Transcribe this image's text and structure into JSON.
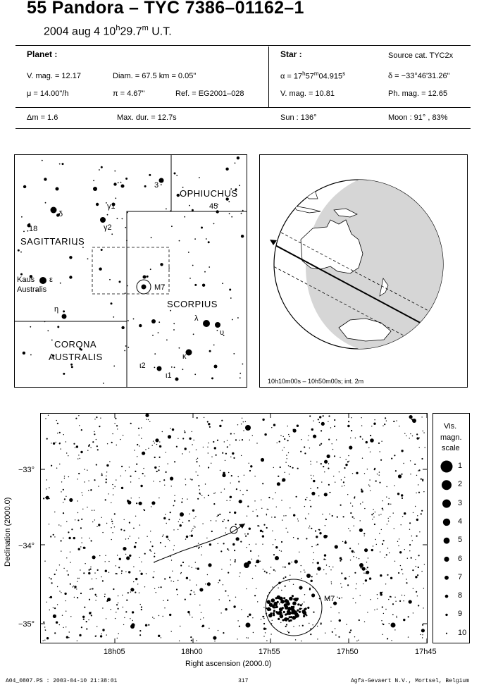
{
  "title": "55 Pandora  –  TYC 7386–01162–1",
  "date": {
    "prefix": "2004 aug  4  10",
    "h": "h",
    "min": "29.7",
    "m": "m",
    "suffix": " U.T."
  },
  "planet": {
    "heading": "Planet :",
    "vmag": "V. mag. = 12.17",
    "diam": "Diam. = 67.5 km = 0.05\"",
    "mu": "μ = 14.00\"/h",
    "pi": "π = 4.67\"",
    "ref": "Ref. = EG2001–028"
  },
  "star": {
    "heading": "Star :",
    "source": "Source cat.  TYC2x",
    "alpha_pre": "α = 17",
    "alpha_h": "h",
    "alpha_min": "57",
    "alpha_m": "m",
    "alpha_sec": "04.915",
    "alpha_s": "s",
    "delta": "δ = −33°46'31.26\"",
    "vmag": "V. mag. = 10.81",
    "phmag": "Ph. mag. = 12.65"
  },
  "event": {
    "dm": "Δm = 1.6",
    "maxdur": "Max. dur. = 12.7s",
    "sun": "Sun : 136°",
    "moon": "Moon :  91° , 83%"
  },
  "finder": {
    "labels": {
      "ophiuchus": "OPHIUCHUS",
      "sagittarius": "SAGITTARIUS",
      "scorpius": "SCORPIUS",
      "corona1": "CORONA",
      "corona2": "AUSTRALIS",
      "kaus1": "Kaus",
      "kaus2": "Australis",
      "m7": "M7",
      "n18": "18",
      "n3": "3",
      "n45": "45"
    },
    "greek": {
      "delta": "δ",
      "gamma1": "γ1",
      "gamma2": "γ2",
      "epsilon": "ε",
      "eta": "η",
      "lambda": "λ",
      "upsilon": "υ",
      "kappa": "κ",
      "iota1": "ι1",
      "tau2": "ι2"
    }
  },
  "globe": {
    "caption": "10h10m00s – 10h50m00s; int.  2m"
  },
  "starchart": {
    "ylabel": "Declination (2000.0)",
    "xlabel": "Right ascension (2000.0)",
    "yticks": [
      "−33°",
      "−34°",
      "−35°"
    ],
    "xticks": [
      "18h05",
      "18h00",
      "17h55",
      "17h50",
      "17h45"
    ],
    "m7": "M7"
  },
  "scale": {
    "title1": "Vis.",
    "title2": "magn.",
    "title3": "scale",
    "mags": [
      "1",
      "2",
      "3",
      "4",
      "5",
      "6",
      "7",
      "8",
      "9",
      "10"
    ]
  },
  "footer": {
    "left": "A04_0807.PS : 2003-04-10 21:38:01",
    "center": "317",
    "right": "Agfa-Gevaert N.V., Mortsel, Belgium"
  }
}
